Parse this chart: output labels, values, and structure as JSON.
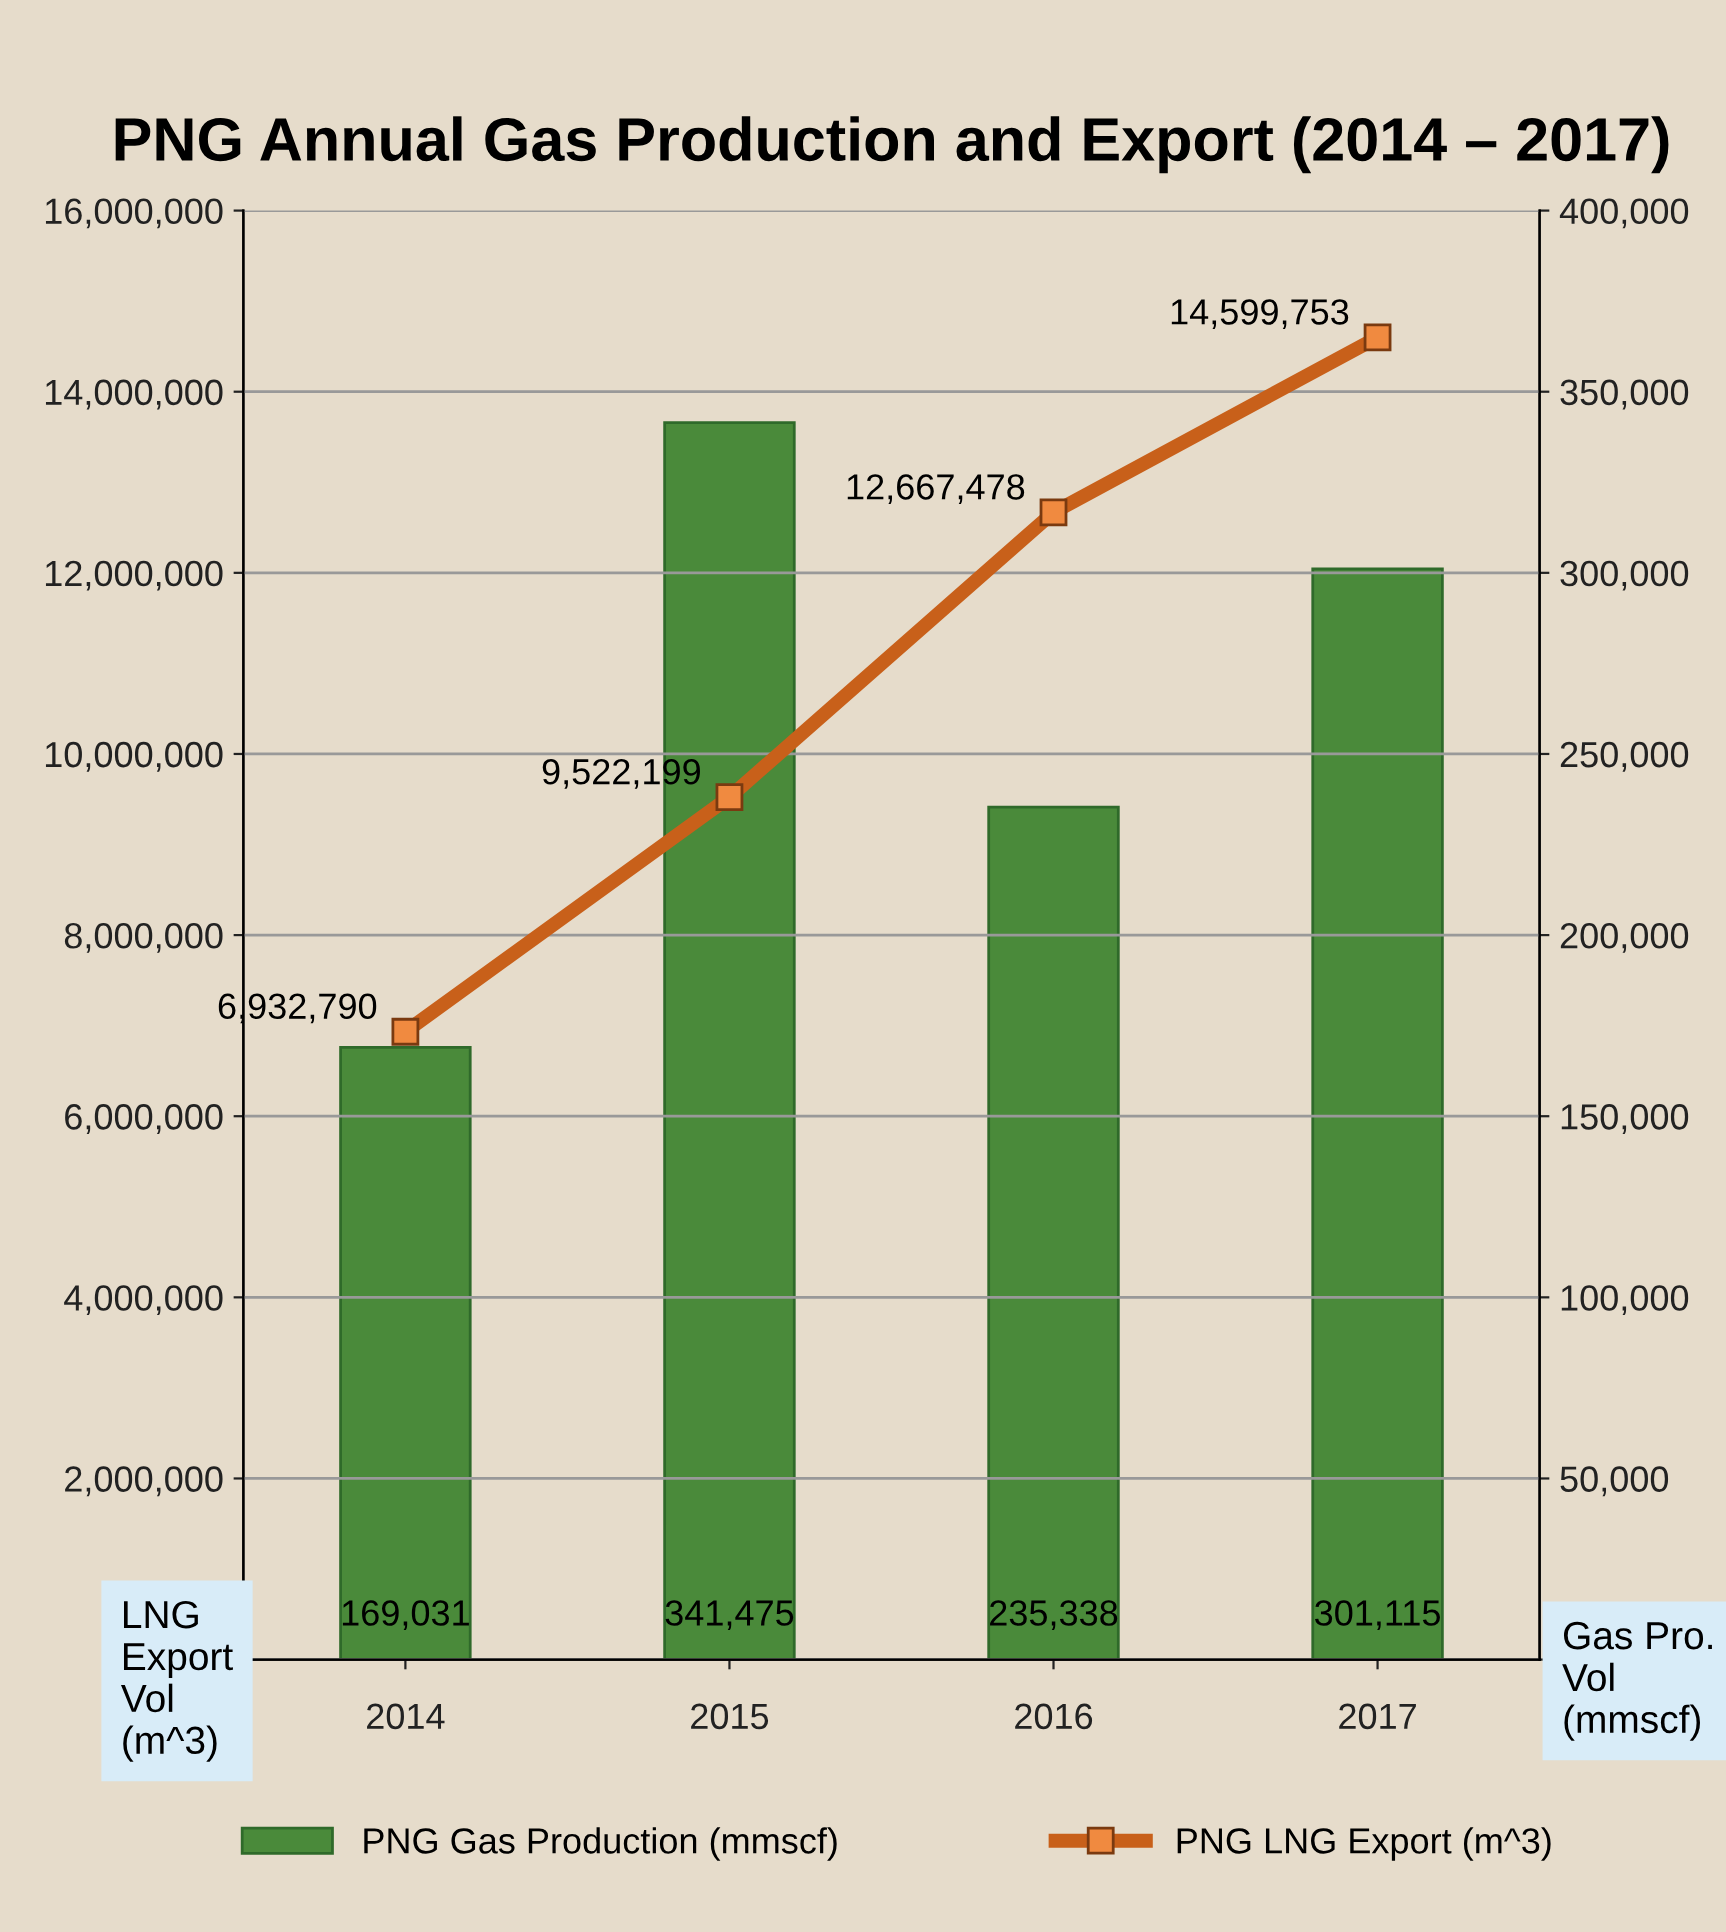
{
  "chart_data": {
    "type": "bar",
    "title": "PNG Annual Gas Production and Export (2014 – 2017)",
    "categories": [
      "2014",
      "2015",
      "2016",
      "2017"
    ],
    "series": [
      {
        "name": "PNG Gas Production (mmscf)",
        "axis": "y2",
        "color": "#4a8a3a",
        "values": [
          169031,
          341475,
          235338,
          301115
        ],
        "value_labels": [
          "169,031",
          "341,475",
          "235,338",
          "301,115"
        ]
      },
      {
        "name": "PNG LNG Export (m^3)",
        "type": "line",
        "axis": "y",
        "color": "#c8601a",
        "values": [
          6932790,
          9522199,
          12667478,
          14599753
        ],
        "value_labels": [
          "6,932,790",
          "9,522,199",
          "12,667,478",
          "14,599,753"
        ]
      }
    ],
    "ylabel": "LNG Export Vol (m^3)",
    "y2label": "Gas Pro. Vol (mmscf)",
    "ylim": [
      0,
      16000000
    ],
    "yticks": [
      {
        "value": 0,
        "label": null
      },
      {
        "value": 2000000,
        "label": "2,000,000"
      },
      {
        "value": 4000000,
        "label": "4,000,000"
      },
      {
        "value": 6000000,
        "label": "6,000,000"
      },
      {
        "value": 8000000,
        "label": "8,000,000"
      },
      {
        "value": 10000000,
        "label": "10,000,000"
      },
      {
        "value": 12000000,
        "label": "12,000,000"
      },
      {
        "value": 14000000,
        "label": "14,000,000"
      },
      {
        "value": 16000000,
        "label": "16,000,000"
      }
    ],
    "y2lim": [
      0,
      400000
    ],
    "y2ticks": [
      {
        "value": 0,
        "label": null
      },
      {
        "value": 50000,
        "label": "50,000"
      },
      {
        "value": 100000,
        "label": "100,000"
      },
      {
        "value": 150000,
        "label": "150,000"
      },
      {
        "value": 200000,
        "label": "200,000"
      },
      {
        "value": 250000,
        "label": "250,000"
      },
      {
        "value": 300000,
        "label": "300,000"
      },
      {
        "value": 350000,
        "label": "350,000"
      },
      {
        "value": 400000,
        "label": "400,000"
      }
    ],
    "grid": "y",
    "legend": "bottom",
    "marker": "square",
    "line_style": "solid"
  }
}
